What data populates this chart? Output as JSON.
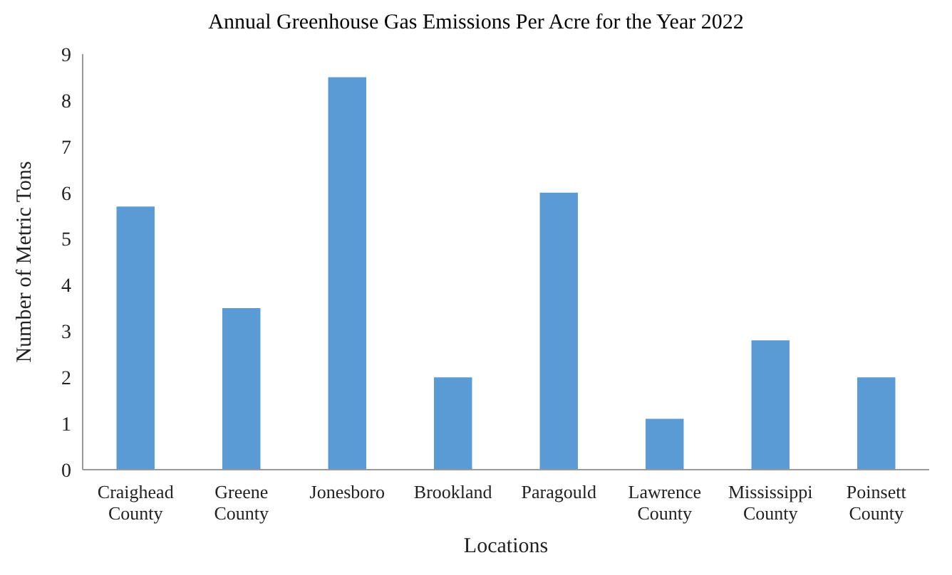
{
  "chart_data": {
    "type": "bar",
    "title": "Annual Greenhouse Gas Emissions Per Acre for the Year 2022",
    "xlabel": "Locations",
    "ylabel": "Number of Metric Tons",
    "categories": [
      "Craighead County",
      "Greene County",
      "Jonesboro",
      "Brookland",
      "Paragould",
      "Lawrence County",
      "Mississippi County",
      "Poinsett County"
    ],
    "values": [
      5.7,
      3.5,
      8.5,
      2.0,
      6.0,
      1.1,
      2.8,
      2.0
    ],
    "color": "#5b9bd5",
    "ylim": [
      0,
      9
    ],
    "yticks": [
      0,
      1,
      2,
      3,
      4,
      5,
      6,
      7,
      8,
      9
    ],
    "grid": false,
    "legend": false
  }
}
